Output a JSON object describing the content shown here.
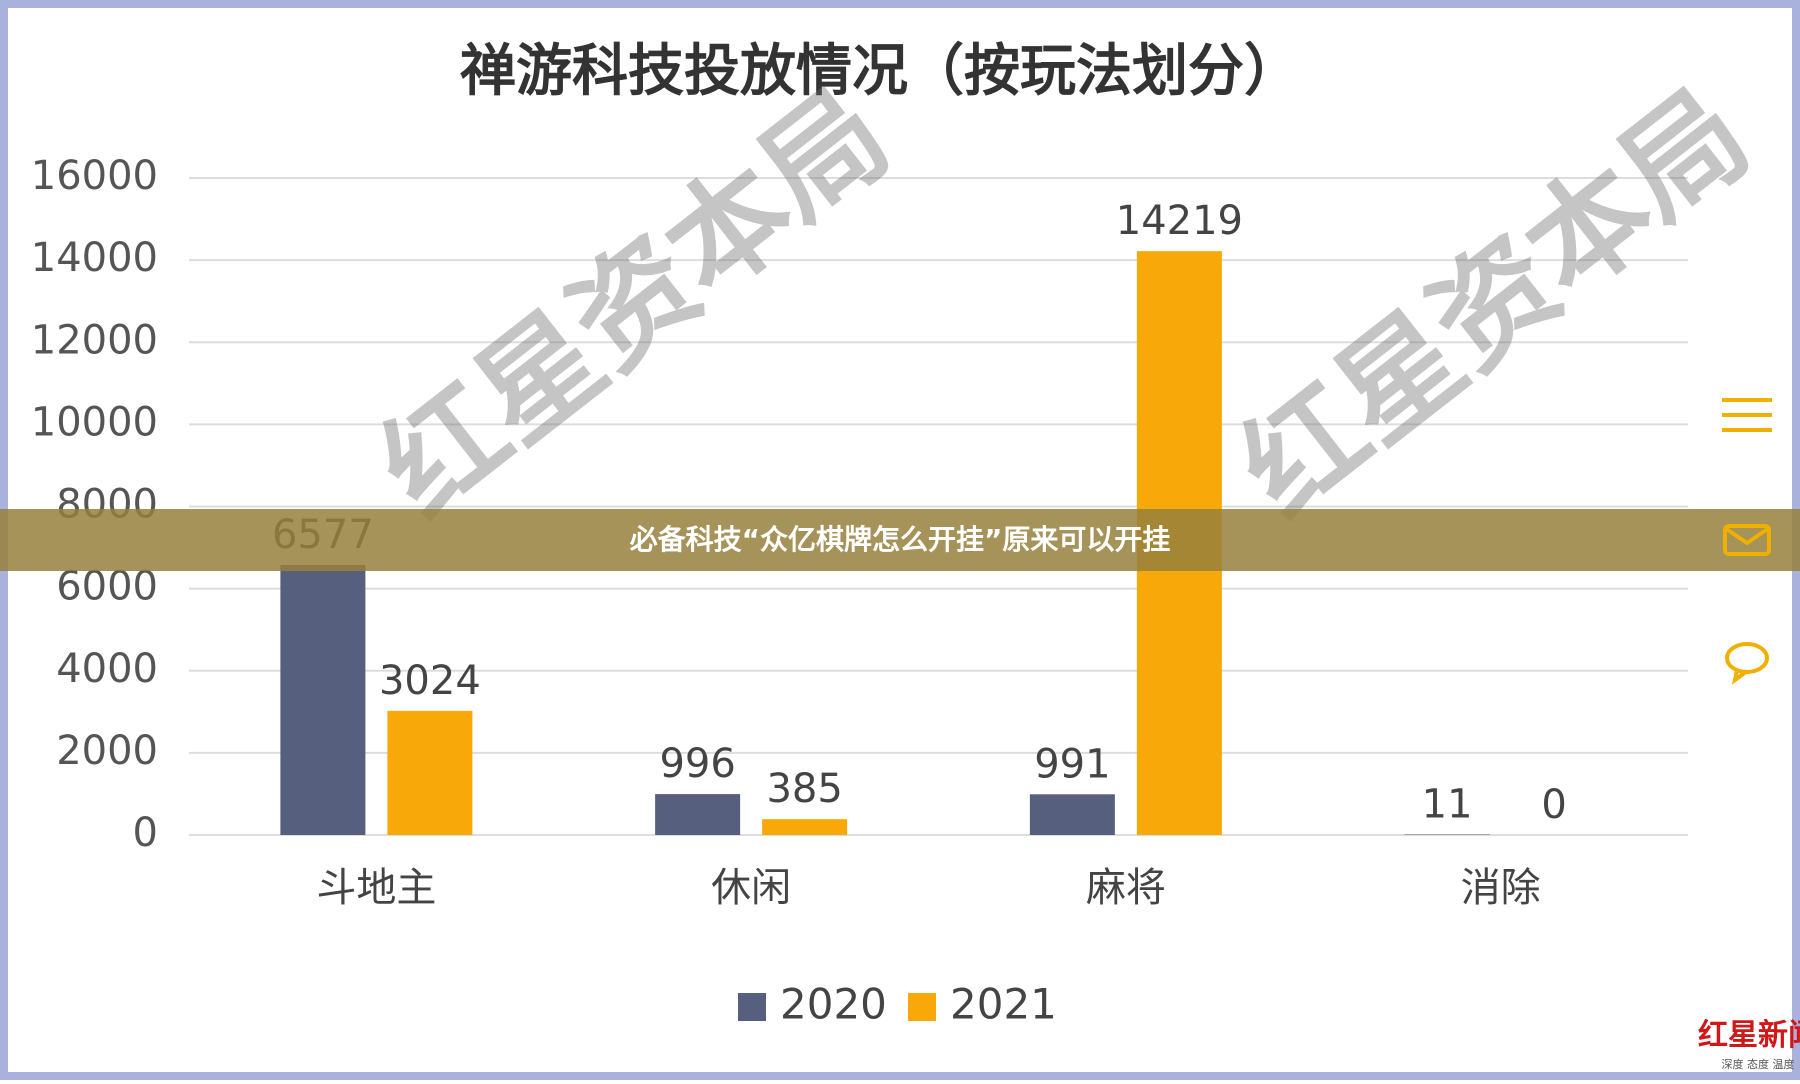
{
  "chart_data": {
    "type": "bar",
    "title": "禅游科技投放情况（按玩法划分）",
    "categories": [
      "斗地主",
      "休闲",
      "麻将",
      "消除"
    ],
    "series": [
      {
        "name": "2020",
        "color": "#56607e",
        "values": [
          6577,
          996,
          991,
          11
        ]
      },
      {
        "name": "2021",
        "color": "#f9a80a",
        "values": [
          3024,
          385,
          14219,
          0
        ]
      }
    ],
    "ylim": [
      0,
      16000
    ],
    "yticks": [
      0,
      2000,
      4000,
      6000,
      8000,
      10000,
      12000,
      14000,
      16000
    ],
    "grid": true,
    "legend": "bottom"
  },
  "watermark": "红星资本局",
  "banner": "必备科技“众亿棋牌怎么开挂”原来可以开挂",
  "logo": {
    "name": "红星新闻",
    "slogan": "深度 态度 温度"
  }
}
